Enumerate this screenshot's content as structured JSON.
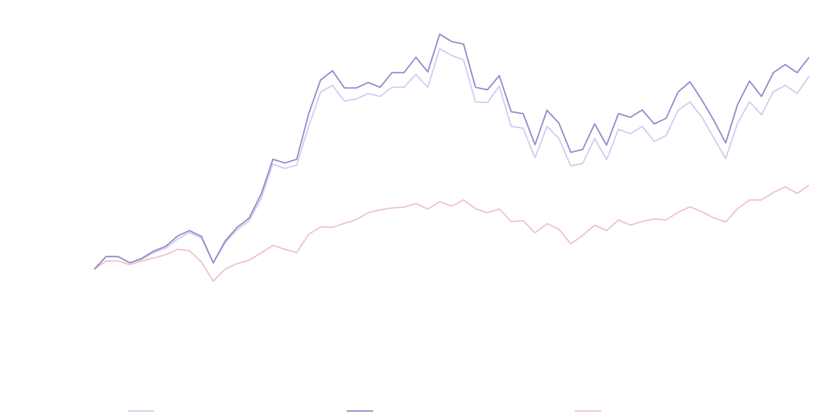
{
  "chart_data": {
    "type": "line",
    "title": "",
    "xlabel": "",
    "ylabel": "",
    "grid": false,
    "legend_position": "bottom",
    "ylim": [
      0,
      1
    ],
    "x": [
      0,
      1,
      2,
      3,
      4,
      5,
      6,
      7,
      8,
      9,
      10,
      11,
      12,
      13,
      14,
      15,
      16,
      17,
      18,
      19,
      20,
      21,
      22,
      23,
      24,
      25,
      26,
      27,
      28,
      29,
      30,
      31,
      32,
      33,
      34,
      35,
      36,
      37,
      38,
      39,
      40,
      41,
      42,
      43,
      44,
      45,
      46,
      47,
      48,
      49,
      50,
      51,
      52,
      53,
      54,
      55,
      56,
      57,
      58,
      59,
      60
    ],
    "series": [
      {
        "name": "",
        "color": "#d2cdf0",
        "values": [
          0.292,
          0.327,
          0.327,
          0.31,
          0.32,
          0.338,
          0.35,
          0.375,
          0.393,
          0.378,
          0.31,
          0.365,
          0.4,
          0.425,
          0.485,
          0.58,
          0.568,
          0.577,
          0.683,
          0.777,
          0.795,
          0.752,
          0.758,
          0.773,
          0.765,
          0.79,
          0.79,
          0.825,
          0.79,
          0.895,
          0.877,
          0.865,
          0.75,
          0.748,
          0.793,
          0.683,
          0.678,
          0.597,
          0.683,
          0.65,
          0.575,
          0.582,
          0.65,
          0.592,
          0.675,
          0.663,
          0.683,
          0.642,
          0.658,
          0.727,
          0.75,
          0.708,
          0.652,
          0.595,
          0.692,
          0.75,
          0.715,
          0.778,
          0.795,
          0.773,
          0.82
        ]
      },
      {
        "name": "",
        "color": "#968bce",
        "values": [
          0.292,
          0.327,
          0.327,
          0.31,
          0.322,
          0.342,
          0.355,
          0.383,
          0.398,
          0.382,
          0.31,
          0.37,
          0.407,
          0.432,
          0.497,
          0.593,
          0.583,
          0.593,
          0.717,
          0.81,
          0.835,
          0.788,
          0.788,
          0.803,
          0.79,
          0.83,
          0.83,
          0.872,
          0.832,
          0.935,
          0.915,
          0.908,
          0.79,
          0.783,
          0.822,
          0.723,
          0.718,
          0.633,
          0.727,
          0.692,
          0.612,
          0.62,
          0.69,
          0.632,
          0.718,
          0.708,
          0.728,
          0.69,
          0.705,
          0.777,
          0.805,
          0.755,
          0.7,
          0.638,
          0.743,
          0.807,
          0.765,
          0.83,
          0.852,
          0.83,
          0.872
        ]
      },
      {
        "name": "",
        "color": "#f0c4c4",
        "values": [
          0.292,
          0.315,
          0.315,
          0.305,
          0.315,
          0.323,
          0.332,
          0.347,
          0.343,
          0.312,
          0.26,
          0.293,
          0.308,
          0.317,
          0.337,
          0.358,
          0.347,
          0.338,
          0.388,
          0.408,
          0.407,
          0.418,
          0.428,
          0.447,
          0.455,
          0.46,
          0.462,
          0.472,
          0.457,
          0.477,
          0.465,
          0.482,
          0.458,
          0.447,
          0.457,
          0.423,
          0.425,
          0.392,
          0.417,
          0.402,
          0.362,
          0.385,
          0.413,
          0.398,
          0.427,
          0.413,
          0.423,
          0.43,
          0.427,
          0.448,
          0.463,
          0.45,
          0.433,
          0.422,
          0.458,
          0.482,
          0.482,
          0.502,
          0.518,
          0.5,
          0.522
        ]
      }
    ]
  }
}
